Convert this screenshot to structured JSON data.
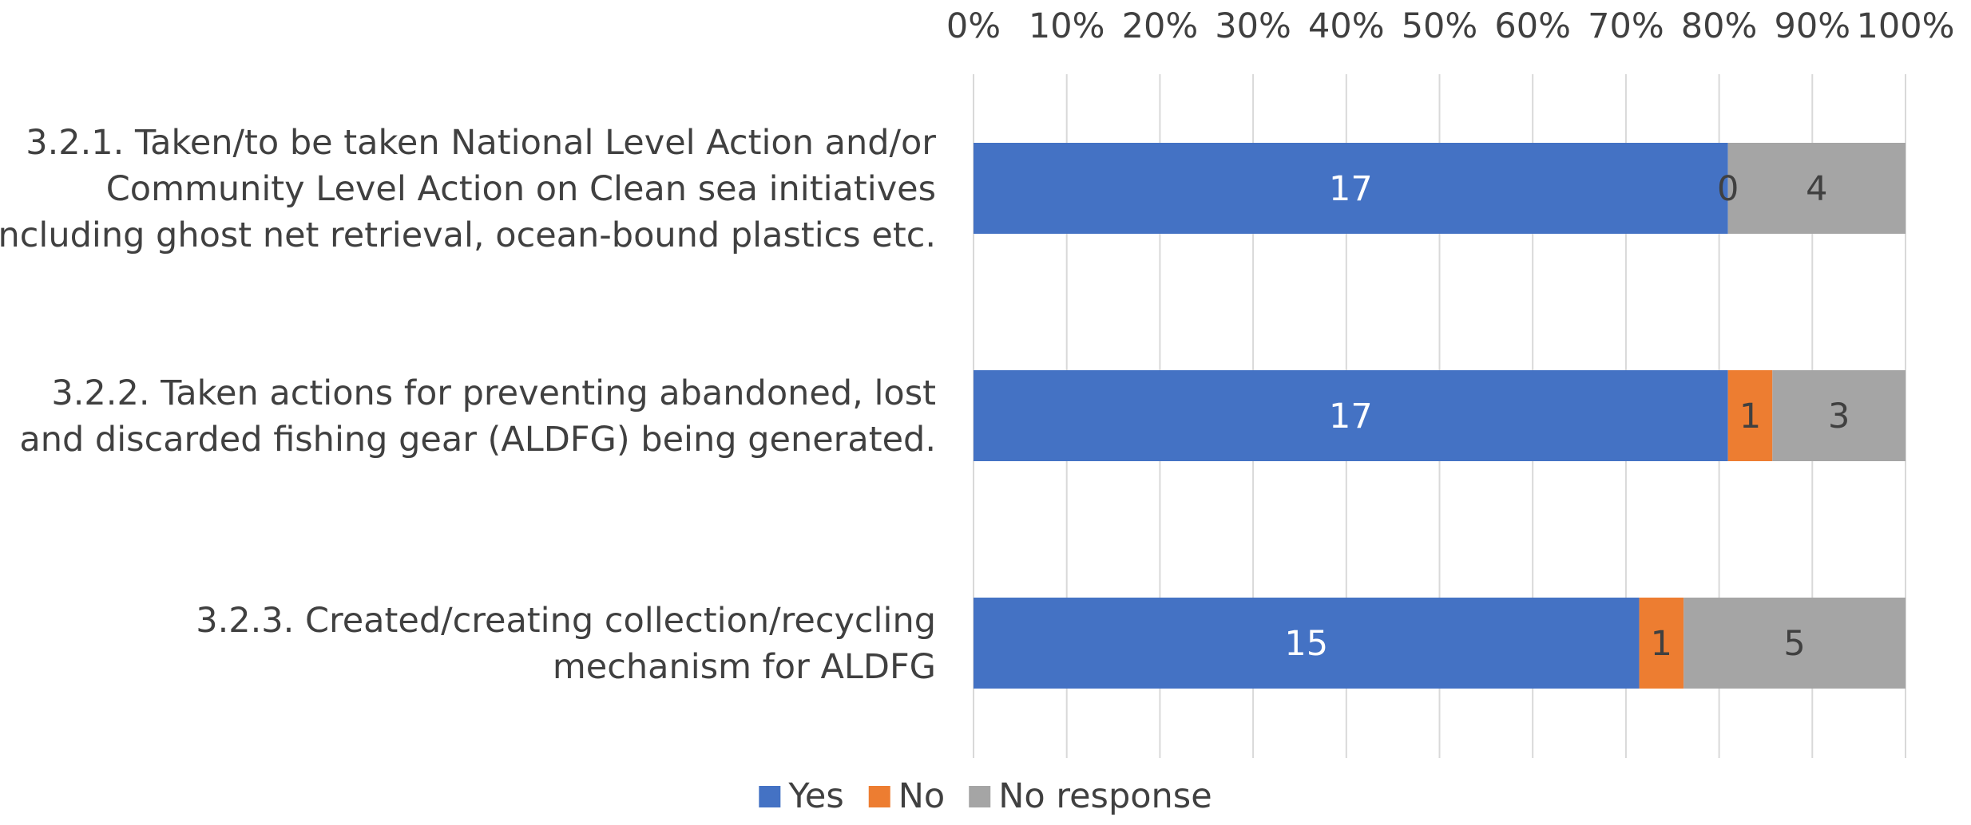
{
  "chart_data": {
    "type": "bar",
    "orientation": "horizontal",
    "stacking": "percent",
    "title": "",
    "xlabel": "",
    "ylabel": "",
    "xlim": [
      0,
      100
    ],
    "ticks": [
      "0%",
      "10%",
      "20%",
      "30%",
      "40%",
      "50%",
      "60%",
      "70%",
      "80%",
      "90%",
      "100%"
    ],
    "grid": true,
    "legend_position": "bottom",
    "categories": [
      [
        "3.2.1. Taken/to be taken National Level Action and/or",
        "Community Level Action on Clean sea initiatives",
        "including ghost net retrieval, ocean-bound plastics etc."
      ],
      [
        "3.2.2. Taken actions for preventing abandoned, lost",
        "and discarded fishing gear (ALDFG) being generated."
      ],
      [
        "3.2.3. Created/creating collection/recycling",
        "mechanism for ALDFG"
      ]
    ],
    "series": [
      {
        "name": "Yes",
        "color": "#4472c4",
        "label_color": "#ffffff",
        "values": [
          17,
          17,
          15
        ]
      },
      {
        "name": "No",
        "color": "#ed7d31",
        "label_color": "#404040",
        "values": [
          0,
          1,
          1
        ]
      },
      {
        "name": "No response",
        "color": "#a5a5a5",
        "label_color": "#404040",
        "values": [
          4,
          3,
          5
        ]
      }
    ]
  }
}
